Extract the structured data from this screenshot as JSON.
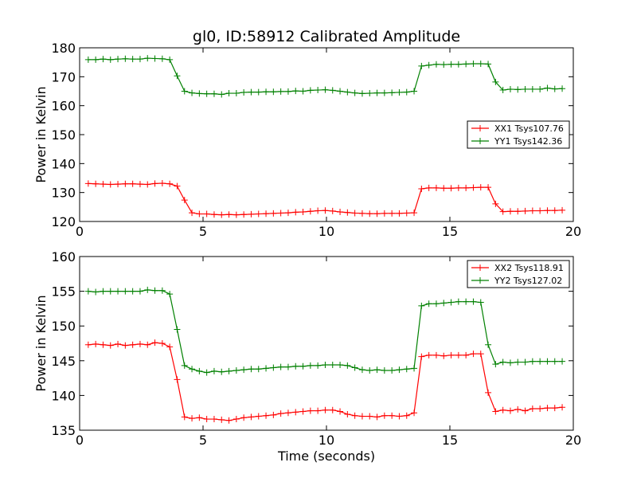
{
  "chart_data": [
    {
      "type": "line",
      "title": "gl0, ID:58912 Calibrated Amplitude",
      "xlabel": "",
      "ylabel": "Power in Kelvin",
      "xlim": [
        0,
        20
      ],
      "ylim": [
        120,
        180
      ],
      "xticks": [
        "0",
        "5",
        "10",
        "15",
        "20"
      ],
      "yticks": [
        "120",
        "130",
        "140",
        "150",
        "160",
        "170",
        "180"
      ],
      "grid": false,
      "legend_position": "center-right",
      "x": [
        0.35,
        0.65,
        0.95,
        1.25,
        1.55,
        1.85,
        2.15,
        2.45,
        2.75,
        3.05,
        3.35,
        3.65,
        3.95,
        4.25,
        4.55,
        4.85,
        5.15,
        5.45,
        5.75,
        6.05,
        6.35,
        6.65,
        6.95,
        7.25,
        7.55,
        7.85,
        8.15,
        8.45,
        8.75,
        9.05,
        9.35,
        9.65,
        9.95,
        10.25,
        10.55,
        10.85,
        11.15,
        11.45,
        11.75,
        12.05,
        12.35,
        12.65,
        12.95,
        13.25,
        13.55,
        13.85,
        14.15,
        14.45,
        14.75,
        15.05,
        15.35,
        15.65,
        15.95,
        16.25,
        16.55,
        16.85,
        17.15,
        17.45,
        17.75,
        18.05,
        18.35,
        18.65,
        18.95,
        19.25,
        19.55
      ],
      "series": [
        {
          "name": "XX1 Tsys107.76",
          "color": "#ff0000",
          "values": [
            133.1,
            133.0,
            132.9,
            132.8,
            132.9,
            133.0,
            133.0,
            132.9,
            132.8,
            133.1,
            133.2,
            133.0,
            132.2,
            127.4,
            123.0,
            122.6,
            122.6,
            122.4,
            122.3,
            122.4,
            122.3,
            122.4,
            122.5,
            122.6,
            122.7,
            122.8,
            122.9,
            123.0,
            123.2,
            123.3,
            123.5,
            123.7,
            123.8,
            123.6,
            123.3,
            123.1,
            122.9,
            122.8,
            122.7,
            122.7,
            122.8,
            122.8,
            122.8,
            122.9,
            123.0,
            131.3,
            131.6,
            131.6,
            131.5,
            131.5,
            131.6,
            131.6,
            131.7,
            131.8,
            131.8,
            126.1,
            123.4,
            123.5,
            123.5,
            123.6,
            123.7,
            123.7,
            123.8,
            123.8,
            123.9
          ]
        },
        {
          "name": "YY1 Tsys142.36",
          "color": "#008000",
          "values": [
            175.9,
            175.9,
            176.1,
            175.9,
            176.1,
            176.2,
            176.1,
            176.1,
            176.4,
            176.3,
            176.2,
            175.9,
            170.3,
            165.0,
            164.4,
            164.2,
            164.1,
            164.1,
            163.9,
            164.3,
            164.3,
            164.6,
            164.7,
            164.7,
            164.8,
            164.8,
            164.9,
            164.9,
            165.1,
            165.0,
            165.3,
            165.4,
            165.5,
            165.3,
            165.0,
            164.7,
            164.4,
            164.2,
            164.3,
            164.4,
            164.4,
            164.5,
            164.6,
            164.7,
            165.0,
            173.7,
            174.0,
            174.3,
            174.2,
            174.3,
            174.3,
            174.4,
            174.5,
            174.5,
            174.4,
            168.2,
            165.4,
            165.7,
            165.6,
            165.7,
            165.7,
            165.7,
            166.1,
            165.8,
            165.9
          ]
        }
      ]
    },
    {
      "type": "line",
      "title": "",
      "xlabel": "Time (seconds)",
      "ylabel": "Power in Kelvin",
      "xlim": [
        0,
        20
      ],
      "ylim": [
        135,
        160
      ],
      "xticks": [
        "0",
        "5",
        "10",
        "15",
        "20"
      ],
      "yticks": [
        "135",
        "140",
        "145",
        "150",
        "155",
        "160"
      ],
      "grid": false,
      "legend_position": "top-right",
      "x": [
        0.35,
        0.65,
        0.95,
        1.25,
        1.55,
        1.85,
        2.15,
        2.45,
        2.75,
        3.05,
        3.35,
        3.65,
        3.95,
        4.25,
        4.55,
        4.85,
        5.15,
        5.45,
        5.75,
        6.05,
        6.35,
        6.65,
        6.95,
        7.25,
        7.55,
        7.85,
        8.15,
        8.45,
        8.75,
        9.05,
        9.35,
        9.65,
        9.95,
        10.25,
        10.55,
        10.85,
        11.15,
        11.45,
        11.75,
        12.05,
        12.35,
        12.65,
        12.95,
        13.25,
        13.55,
        13.85,
        14.15,
        14.45,
        14.75,
        15.05,
        15.35,
        15.65,
        15.95,
        16.25,
        16.55,
        16.85,
        17.15,
        17.45,
        17.75,
        18.05,
        18.35,
        18.65,
        18.95,
        19.25,
        19.55
      ],
      "series": [
        {
          "name": "XX2 Tsys118.91",
          "color": "#ff0000",
          "values": [
            147.3,
            147.4,
            147.3,
            147.2,
            147.4,
            147.2,
            147.3,
            147.4,
            147.3,
            147.6,
            147.5,
            147.0,
            142.3,
            136.9,
            136.7,
            136.8,
            136.6,
            136.6,
            136.5,
            136.4,
            136.6,
            136.8,
            136.9,
            137.0,
            137.1,
            137.2,
            137.4,
            137.5,
            137.6,
            137.7,
            137.8,
            137.8,
            137.9,
            137.9,
            137.7,
            137.3,
            137.1,
            137.0,
            137.0,
            136.9,
            137.1,
            137.1,
            137.0,
            137.1,
            137.5,
            145.6,
            145.8,
            145.8,
            145.7,
            145.8,
            145.8,
            145.8,
            146.0,
            146.0,
            140.4,
            137.7,
            137.9,
            137.8,
            138.0,
            137.8,
            138.1,
            138.1,
            138.2,
            138.2,
            138.3
          ]
        },
        {
          "name": "YY2 Tsys127.02",
          "color": "#008000",
          "values": [
            155.0,
            154.9,
            155.0,
            155.0,
            155.0,
            155.0,
            155.0,
            155.0,
            155.2,
            155.1,
            155.1,
            154.6,
            149.5,
            144.3,
            143.8,
            143.5,
            143.3,
            143.5,
            143.4,
            143.5,
            143.6,
            143.7,
            143.8,
            143.8,
            143.9,
            144.0,
            144.1,
            144.1,
            144.2,
            144.2,
            144.3,
            144.3,
            144.4,
            144.4,
            144.4,
            144.3,
            144.0,
            143.7,
            143.6,
            143.7,
            143.6,
            143.6,
            143.7,
            143.8,
            143.9,
            152.9,
            153.2,
            153.2,
            153.3,
            153.4,
            153.5,
            153.5,
            153.5,
            153.4,
            147.3,
            144.5,
            144.8,
            144.7,
            144.8,
            144.8,
            144.9,
            144.9,
            144.9,
            144.9,
            144.9
          ]
        }
      ]
    }
  ]
}
